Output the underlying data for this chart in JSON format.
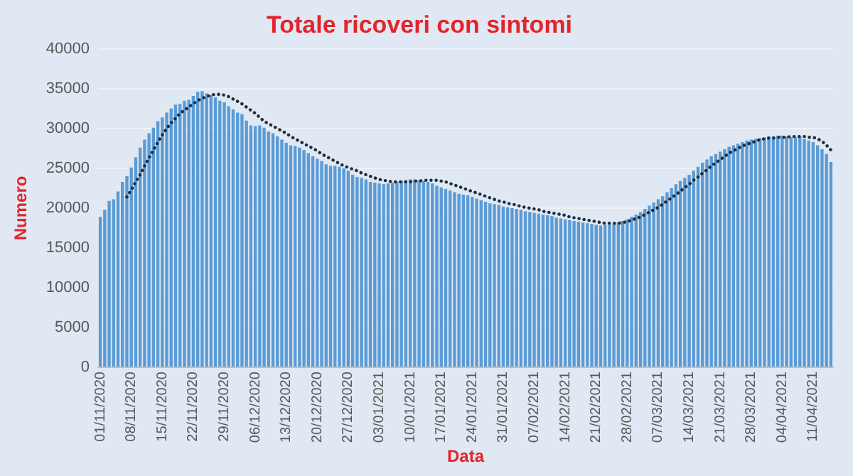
{
  "chart_data": {
    "type": "bar",
    "title": "Totale ricoveri con sintomi",
    "xlabel": "Data",
    "ylabel": "Numero",
    "categories": [
      "01/11/2020",
      null,
      null,
      null,
      null,
      null,
      null,
      "08/11/2020",
      null,
      null,
      null,
      null,
      null,
      null,
      "15/11/2020",
      null,
      null,
      null,
      null,
      null,
      null,
      "22/11/2020",
      null,
      null,
      null,
      null,
      null,
      null,
      "29/11/2020",
      null,
      null,
      null,
      null,
      null,
      null,
      "06/12/2020",
      null,
      null,
      null,
      null,
      null,
      null,
      "13/12/2020",
      null,
      null,
      null,
      null,
      null,
      null,
      "20/12/2020",
      null,
      null,
      null,
      null,
      null,
      null,
      "27/12/2020",
      null,
      null,
      null,
      null,
      null,
      null,
      "03/01/2021",
      null,
      null,
      null,
      null,
      null,
      null,
      "10/01/2021",
      null,
      null,
      null,
      null,
      null,
      null,
      "17/01/2021",
      null,
      null,
      null,
      null,
      null,
      null,
      "24/01/2021",
      null,
      null,
      null,
      null,
      null,
      null,
      "31/01/2021",
      null,
      null,
      null,
      null,
      null,
      null,
      "07/02/2021",
      null,
      null,
      null,
      null,
      null,
      null,
      "14/02/2021",
      null,
      null,
      null,
      null,
      null,
      null,
      "21/02/2021",
      null,
      null,
      null,
      null,
      null,
      null,
      "28/02/2021",
      null,
      null,
      null,
      null,
      null,
      null,
      "07/03/2021",
      null,
      null,
      null,
      null,
      null,
      null,
      "14/03/2021",
      null,
      null,
      null,
      null,
      null,
      null,
      "21/03/2021",
      null,
      null,
      null,
      null,
      null,
      null,
      "28/03/2021",
      null,
      null,
      null,
      null,
      null,
      null,
      "04/04/2021",
      null,
      null,
      null,
      null,
      null,
      null,
      "11/04/2021",
      null,
      null,
      null,
      null
    ],
    "series": [
      {
        "color": "#5b9bd5",
        "values": [
          18900,
          19800,
          20900,
          21100,
          22100,
          23300,
          24000,
          25100,
          26400,
          27600,
          28600,
          29400,
          30100,
          30900,
          31400,
          32000,
          32500,
          33000,
          33100,
          33500,
          33600,
          34100,
          34600,
          34700,
          34400,
          34200,
          33900,
          33500,
          33300,
          32800,
          32400,
          32000,
          31800,
          31000,
          30400,
          30300,
          30400,
          30100,
          29600,
          29400,
          29000,
          28600,
          28200,
          27900,
          27800,
          27600,
          27300,
          26900,
          26500,
          26200,
          25900,
          25500,
          25300,
          25300,
          25200,
          25000,
          24700,
          24200,
          23900,
          23800,
          23600,
          23300,
          23200,
          23100,
          23000,
          23100,
          23200,
          23300,
          23400,
          23500,
          23600,
          23600,
          23500,
          23400,
          23300,
          23100,
          22800,
          22600,
          22400,
          22200,
          22000,
          21800,
          21700,
          21600,
          21400,
          21200,
          21000,
          20800,
          20600,
          20500,
          20400,
          20200,
          20100,
          20000,
          19900,
          19800,
          19600,
          19500,
          19400,
          19300,
          19200,
          19100,
          19000,
          18800,
          18700,
          18600,
          18500,
          18400,
          18300,
          18200,
          18100,
          18000,
          17900,
          17800,
          17900,
          17900,
          18000,
          18200,
          18400,
          18600,
          18900,
          19200,
          19500,
          19900,
          20300,
          20700,
          21100,
          21500,
          22000,
          22500,
          23000,
          23400,
          23800,
          24200,
          24700,
          25200,
          25700,
          26100,
          26500,
          26800,
          27100,
          27400,
          27700,
          27900,
          28100,
          28300,
          28500,
          28600,
          28700,
          28800,
          28900,
          29000,
          29000,
          29100,
          29100,
          29000,
          28900,
          28900,
          29000,
          28700,
          28500,
          28300,
          27900,
          27400,
          26800,
          25800
        ]
      },
      {
        "type": "line",
        "color": "#1f2d3d",
        "line_style": "dotted",
        "marker": "none",
        "values": [
          null,
          null,
          null,
          null,
          null,
          null,
          21400,
          22300,
          23300,
          24200,
          25300,
          26300,
          27300,
          28300,
          29200,
          30000,
          30700,
          31300,
          31900,
          32300,
          32700,
          33100,
          33500,
          33800,
          34000,
          34200,
          34300,
          34300,
          34200,
          34000,
          33700,
          33400,
          33100,
          32700,
          32300,
          31900,
          31400,
          30900,
          30600,
          30300,
          30000,
          29700,
          29400,
          29000,
          28700,
          28400,
          28100,
          27800,
          27500,
          27200,
          26800,
          26500,
          26200,
          25900,
          25600,
          25300,
          25100,
          24900,
          24700,
          24400,
          24200,
          24000,
          23800,
          23600,
          23500,
          23400,
          23300,
          23300,
          23300,
          23300,
          23300,
          23400,
          23400,
          23500,
          23500,
          23500,
          23500,
          23400,
          23300,
          23100,
          22900,
          22700,
          22500,
          22300,
          22100,
          21900,
          21700,
          21500,
          21300,
          21100,
          20900,
          20800,
          20600,
          20500,
          20400,
          20200,
          20100,
          20000,
          19900,
          19800,
          19600,
          19500,
          19400,
          19300,
          19200,
          19100,
          18900,
          18800,
          18700,
          18600,
          18500,
          18400,
          18300,
          18200,
          18100,
          18100,
          18100,
          18100,
          18200,
          18300,
          18500,
          18700,
          18900,
          19200,
          19500,
          19800,
          20100,
          20500,
          20900,
          21300,
          21700,
          22100,
          22600,
          23000,
          23500,
          23900,
          24400,
          24800,
          25300,
          25700,
          26100,
          26500,
          26900,
          27200,
          27500,
          27800,
          28000,
          28200,
          28400,
          28600,
          28700,
          28800,
          28800,
          28900,
          28900,
          28900,
          29000,
          29000,
          29000,
          29000,
          28900,
          28900,
          28700,
          28400,
          27900,
          27300
        ]
      }
    ],
    "ylim": [
      0,
      40000
    ],
    "yticks": [
      0,
      5000,
      10000,
      15000,
      20000,
      25000,
      30000,
      35000,
      40000
    ],
    "grid": "y"
  }
}
